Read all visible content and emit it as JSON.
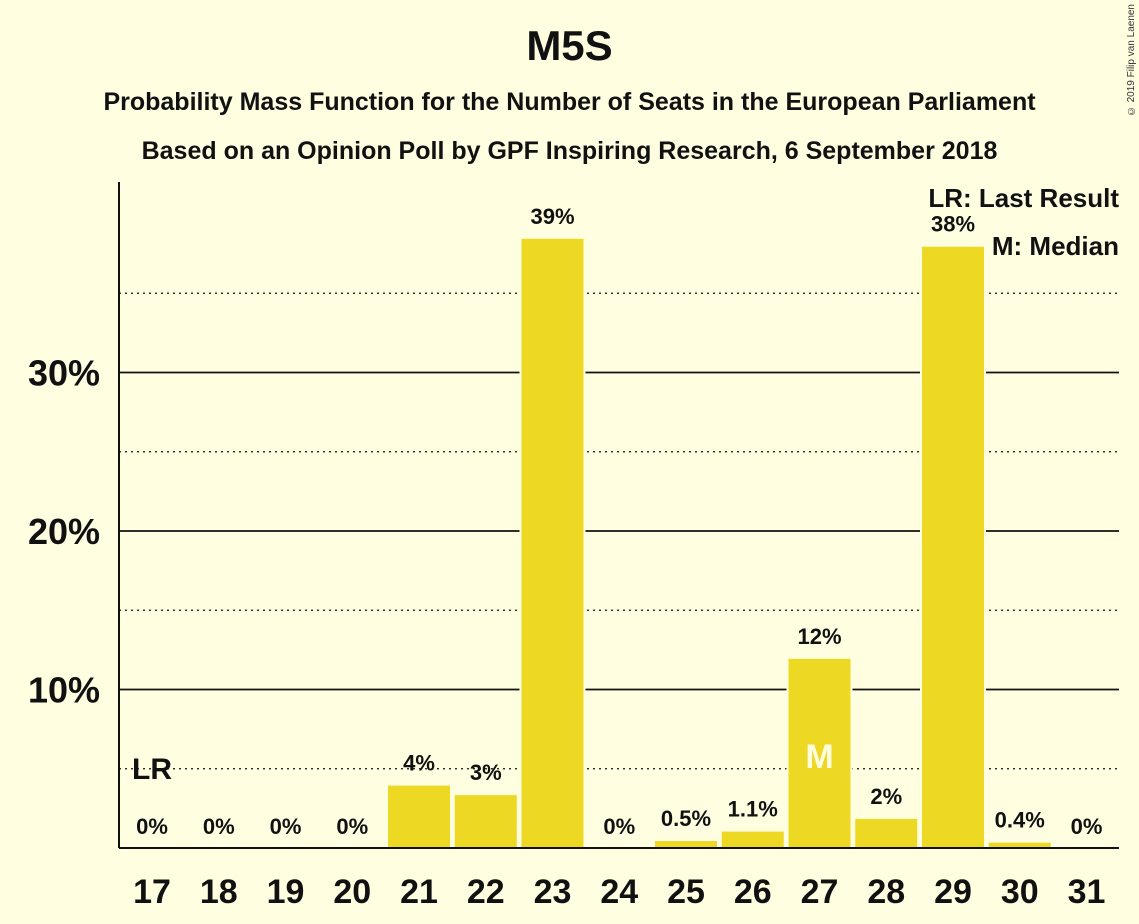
{
  "title": "M5S",
  "subtitle": "Probability Mass Function for the Number of Seats in the European Parliament",
  "subtitle2": "Based on an Opinion Poll by GPF Inspiring Research, 6 September 2018",
  "copyright": "© 2019 Filip van Laenen",
  "legend": {
    "last_result": "LR: Last Result",
    "median": "M: Median"
  },
  "colors": {
    "background": "#FFFEE0",
    "bar": "#EDD924",
    "median_text": "#FFFEE0"
  },
  "chart_data": {
    "type": "bar",
    "categories": [
      "17",
      "18",
      "19",
      "20",
      "21",
      "22",
      "23",
      "24",
      "25",
      "26",
      "27",
      "28",
      "29",
      "30",
      "31"
    ],
    "values": [
      0,
      0,
      0,
      0,
      4,
      3.4,
      38.5,
      0,
      0.5,
      1.1,
      12,
      1.9,
      38,
      0.4,
      0
    ],
    "labels": [
      "0%",
      "0%",
      "0%",
      "0%",
      "4%",
      "3%",
      "39%",
      "0%",
      "0.5%",
      "1.1%",
      "12%",
      "2%",
      "38%",
      "0.4%",
      "0%"
    ],
    "y_ticks": [
      {
        "value": 10,
        "label": "10%"
      },
      {
        "value": 20,
        "label": "20%"
      },
      {
        "value": 30,
        "label": "30%"
      }
    ],
    "y_minor_gridlines": [
      5,
      15,
      25,
      35
    ],
    "ylim": [
      0,
      42
    ],
    "last_result": {
      "category": "17",
      "label": "LR"
    },
    "median": {
      "category": "27",
      "label": "M"
    },
    "grid": true
  }
}
